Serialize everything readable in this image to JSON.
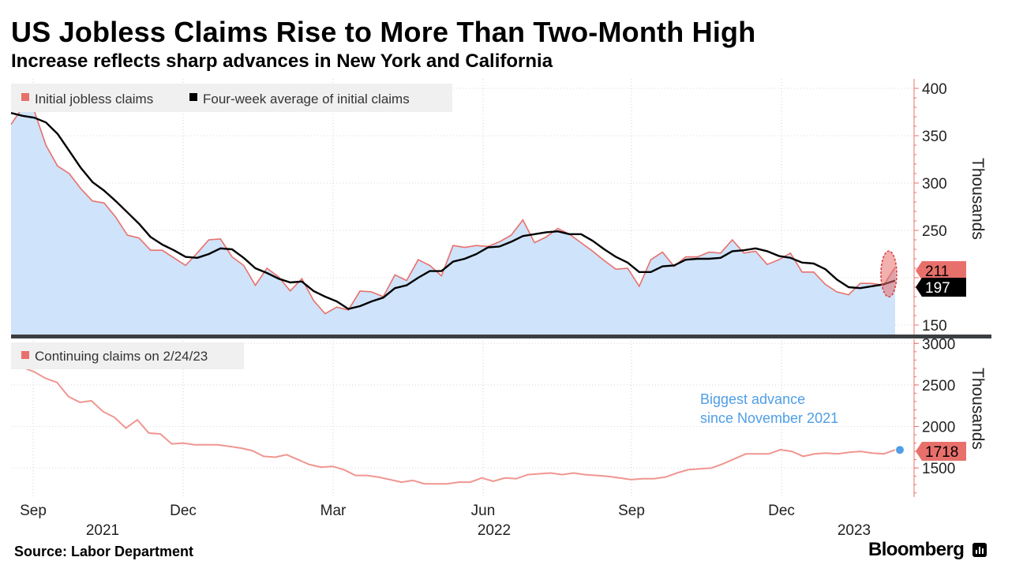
{
  "header": {
    "title": "US Jobless Claims Rise to More Than Two-Month High",
    "subtitle": "Increase reflects sharp advances in New York and California"
  },
  "footer": {
    "source": "Source: Labor Department",
    "brand": "Bloomberg"
  },
  "colors": {
    "initial_claims": "#e8706b",
    "initial_fill": "#cfe3fa",
    "four_week_avg": "#000000",
    "continuing_claims": "#f09690",
    "annotation": "#4f9ee6",
    "axis": "#e8706b",
    "divider": "#3c3f42",
    "legend_bg": "#f0f0f0"
  },
  "chart_data": [
    {
      "type": "area",
      "title": "",
      "ylabel": "Thousands",
      "ylim": [
        140,
        410
      ],
      "yticks": [
        150,
        200,
        250,
        300,
        350,
        400
      ],
      "grid": true,
      "legend_position": "top-left",
      "x_tick_labels": [
        "Sep",
        "Dec",
        "Mar",
        "Jun",
        "Sep",
        "Dec"
      ],
      "x_year_labels": [
        "2021",
        "2022",
        "2023"
      ],
      "series": [
        {
          "name": "Initial jobless claims",
          "style": "area",
          "last_value_label": "211",
          "values": [
            362,
            380,
            376,
            340,
            318,
            310,
            294,
            281,
            279,
            264,
            245,
            242,
            229,
            229,
            221,
            213,
            226,
            240,
            241,
            222,
            213,
            192,
            210,
            201,
            186,
            199,
            176,
            162,
            169,
            166,
            186,
            185,
            180,
            203,
            197,
            219,
            213,
            202,
            234,
            232,
            234,
            233,
            238,
            245,
            261,
            237,
            243,
            252,
            246,
            237,
            228,
            218,
            209,
            210,
            191,
            219,
            227,
            212,
            222,
            222,
            227,
            226,
            240,
            226,
            228,
            214,
            219,
            226,
            206,
            206,
            193,
            185,
            182,
            194,
            194,
            192,
            211
          ]
        },
        {
          "name": "Four-week average of initial claims",
          "style": "line",
          "last_value_label": "197",
          "values": [
            374,
            371,
            369,
            364,
            352,
            334,
            316,
            301,
            292,
            281,
            269,
            257,
            243,
            235,
            229,
            222,
            221,
            225,
            231,
            230,
            221,
            210,
            205,
            199,
            195,
            196,
            186,
            180,
            175,
            167,
            170,
            175,
            179,
            189,
            192,
            200,
            207,
            207,
            217,
            220,
            225,
            232,
            233,
            238,
            244,
            246,
            248,
            249,
            246,
            246,
            239,
            230,
            222,
            216,
            206,
            206,
            212,
            213,
            219,
            220,
            220,
            221,
            228,
            229,
            231,
            228,
            223,
            221,
            216,
            215,
            209,
            198,
            190,
            189,
            191,
            193,
            197
          ]
        }
      ],
      "annotations": [
        {
          "type": "highlight-ellipse",
          "target": "latest week"
        }
      ]
    },
    {
      "type": "line",
      "title": "",
      "ylabel": "Thousands",
      "ylim": [
        1150,
        3050
      ],
      "yticks": [
        1500,
        2000,
        2500,
        3000
      ],
      "grid": true,
      "legend_position": "top-left",
      "series": [
        {
          "name": "Continuing claims on 2/24/23",
          "last_value_label": "1718",
          "values": [
            2700,
            2710,
            2660,
            2580,
            2530,
            2360,
            2290,
            2310,
            2180,
            2110,
            1980,
            2080,
            1920,
            1910,
            1790,
            1800,
            1780,
            1780,
            1780,
            1760,
            1740,
            1710,
            1640,
            1630,
            1660,
            1600,
            1540,
            1510,
            1520,
            1480,
            1410,
            1410,
            1390,
            1360,
            1330,
            1350,
            1310,
            1310,
            1310,
            1330,
            1330,
            1380,
            1340,
            1380,
            1370,
            1420,
            1430,
            1440,
            1420,
            1440,
            1420,
            1410,
            1400,
            1380,
            1360,
            1370,
            1370,
            1390,
            1440,
            1480,
            1490,
            1500,
            1550,
            1610,
            1670,
            1670,
            1670,
            1720,
            1700,
            1640,
            1670,
            1680,
            1670,
            1690,
            1700,
            1680,
            1670,
            1718
          ]
        }
      ],
      "annotations": [
        {
          "text": "Biggest advance",
          "text2": "since November 2021",
          "target": "latest week"
        }
      ]
    }
  ]
}
